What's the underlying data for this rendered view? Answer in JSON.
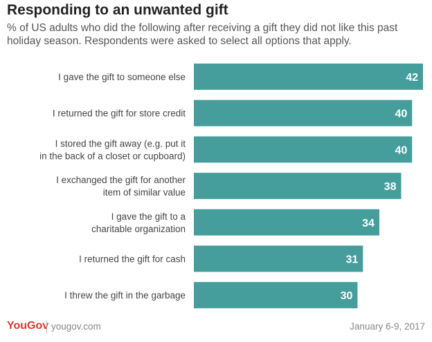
{
  "chart_data": {
    "type": "bar",
    "orientation": "horizontal",
    "title": "Responding to an unwanted gift",
    "subtitle": "% of US adults who did the following after receiving a gift they did not like this past holiday season. Respondents were asked to select all options that apply.",
    "categories": [
      "I gave the gift to someone else",
      "I returned the gift for store credit",
      "I stored the gift away (e.g. put it in the back of a closet or cupboard)",
      "I exchanged the gift for another item of similar value",
      "I gave the gift to a charitable organization",
      "I returned the gift for cash",
      "I threw the gift in the garbage"
    ],
    "category_lines": [
      [
        "I gave the gift to someone else"
      ],
      [
        "I returned the gift for store credit"
      ],
      [
        "I stored the gift away (e.g. put it",
        "in the back of a closet or cupboard)"
      ],
      [
        "I exchanged the gift for another",
        "item of similar value"
      ],
      [
        "I gave the gift to a",
        "charitable organization"
      ],
      [
        "I returned the gift for cash"
      ],
      [
        "I threw the gift in the garbage"
      ]
    ],
    "values": [
      42,
      40,
      40,
      38,
      34,
      31,
      30
    ],
    "xlim": [
      0,
      42
    ],
    "bar_color": "#459e9b",
    "grid": false,
    "legend": "none"
  },
  "footer": {
    "brand": "YouGov",
    "url": "yougov.com",
    "date": "January 6-9, 2017"
  },
  "colors": {
    "brand": "#e0352b",
    "bar": "#459e9b"
  }
}
